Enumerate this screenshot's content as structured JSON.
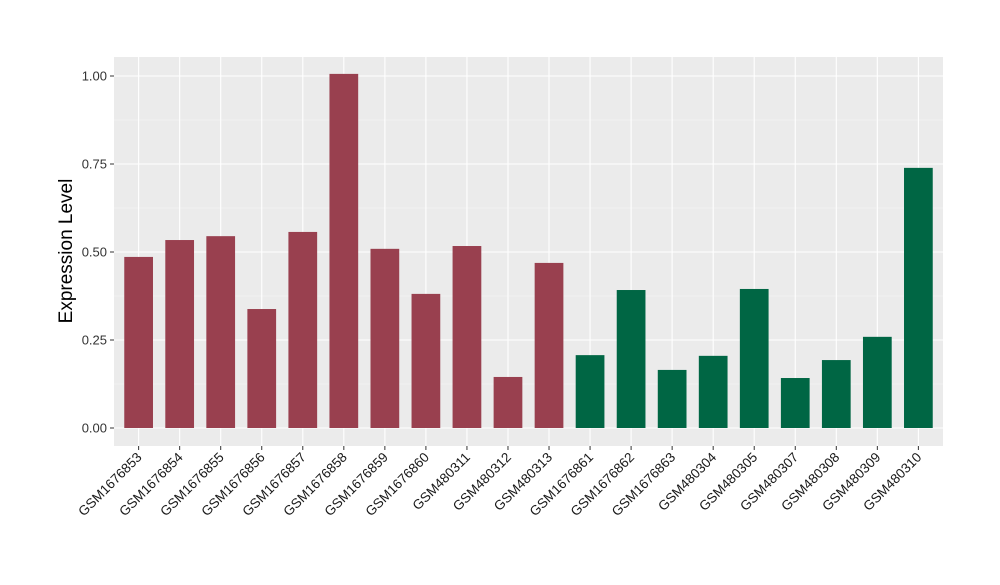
{
  "chart_data": {
    "type": "bar",
    "title": "",
    "xlabel": "",
    "ylabel": "Expression Level",
    "ylim": [
      -0.05,
      1.056
    ],
    "yticks": [
      0.0,
      0.25,
      0.5,
      0.75,
      1.0
    ],
    "ytick_labels": [
      "0.00",
      "0.25",
      "0.50",
      "0.75",
      "1.00"
    ],
    "grid": true,
    "legend": "none",
    "categories": [
      "GSM1676853",
      "GSM1676854",
      "GSM1676855",
      "GSM1676856",
      "GSM1676857",
      "GSM1676858",
      "GSM1676859",
      "GSM1676860",
      "GSM480311",
      "GSM480312",
      "GSM480313",
      "GSM1676861",
      "GSM1676862",
      "GSM1676863",
      "GSM480304",
      "GSM480305",
      "GSM480307",
      "GSM480308",
      "GSM480309",
      "GSM480310"
    ],
    "values": [
      0.486,
      0.534,
      0.545,
      0.338,
      0.557,
      1.006,
      0.509,
      0.381,
      0.517,
      0.145,
      0.469,
      0.207,
      0.392,
      0.165,
      0.205,
      0.395,
      0.142,
      0.193,
      0.259,
      0.739
    ],
    "groups": [
      "a",
      "a",
      "a",
      "a",
      "a",
      "a",
      "a",
      "a",
      "a",
      "a",
      "a",
      "b",
      "b",
      "b",
      "b",
      "b",
      "b",
      "b",
      "b",
      "b"
    ],
    "group_colors": {
      "a": "#99404F",
      "b": "#006644"
    }
  }
}
